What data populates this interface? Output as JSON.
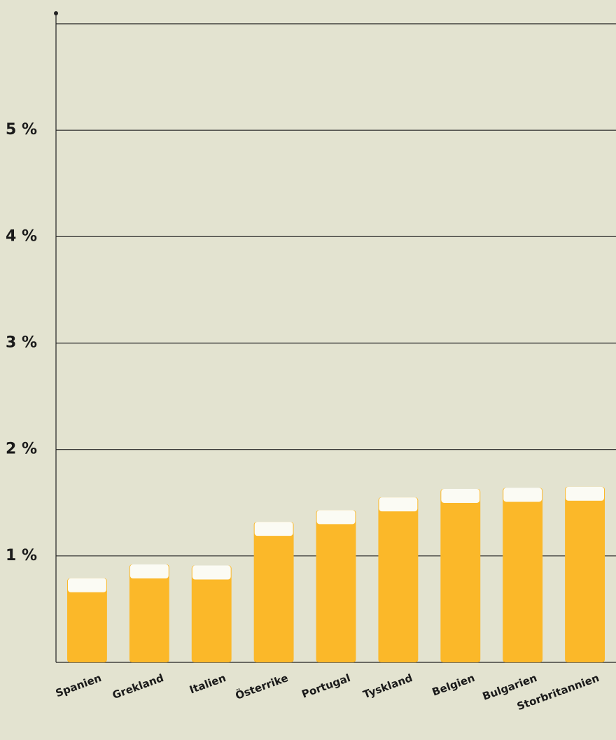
{
  "chart_data": {
    "type": "bar",
    "categories": [
      "Spanien",
      "Grekland",
      "Italien",
      "Österrike",
      "Portugal",
      "Tyskland",
      "Belgien",
      "Bulgarien",
      "Storbritannien"
    ],
    "values": [
      0.79,
      0.92,
      0.91,
      1.32,
      1.43,
      1.55,
      1.63,
      1.64,
      1.65
    ],
    "color": "#fbb829",
    "ylim": [
      0,
      6
    ],
    "yticks": [
      {
        "value": 1,
        "label": "1 %"
      },
      {
        "value": 2,
        "label": "2 %"
      },
      {
        "value": 3,
        "label": "3 %"
      },
      {
        "value": 4,
        "label": "4 %"
      },
      {
        "value": 5,
        "label": "5 %"
      }
    ],
    "grid": true
  }
}
